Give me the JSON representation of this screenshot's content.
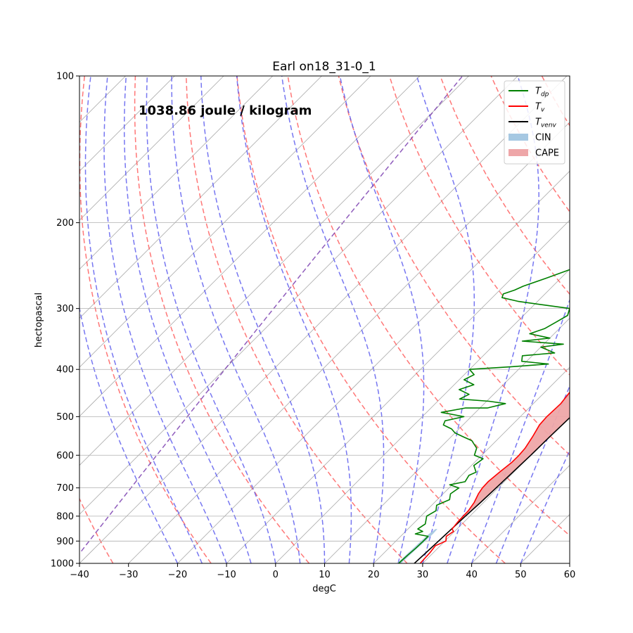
{
  "chart_data": {
    "type": "line",
    "title": "Earl on18_31-0_1",
    "annotation": "1038.86 joule / kilogram",
    "xlabel": "degC",
    "ylabel": "hectopascal",
    "xlim": [
      -40,
      60
    ],
    "ylim": [
      1000,
      100
    ],
    "y_scale": "log",
    "grid": true,
    "x_ticks": [
      -40,
      -30,
      -20,
      -10,
      0,
      10,
      20,
      30,
      40,
      50,
      60
    ],
    "y_ticks": [
      100,
      200,
      300,
      400,
      500,
      600,
      700,
      800,
      900,
      1000
    ],
    "legend": {
      "placement": "top-right",
      "entries": [
        {
          "key": "tdp",
          "base": "T",
          "sub": "dp",
          "color": "#008000",
          "kind": "line"
        },
        {
          "key": "tv",
          "base": "T",
          "sub": "v",
          "color": "#ff0000",
          "kind": "line"
        },
        {
          "key": "tvenv",
          "base": "T",
          "sub": "venv",
          "color": "#000000",
          "kind": "line"
        },
        {
          "key": "cin",
          "label": "CIN",
          "color": "#a6c8e2",
          "kind": "patch"
        },
        {
          "key": "cape",
          "label": "CAPE",
          "color": "#eea6a8",
          "kind": "patch"
        }
      ]
    },
    "colors": {
      "dry_adiabat": "#ff5555",
      "moist_adiabat": "#5555ee",
      "isotherm": "#a9a9a9",
      "mixing_ratio": "#7b3fb0"
    },
    "series": [
      {
        "key": "tvenv",
        "points": [
          [
            28.3,
            1000
          ],
          [
            28.5,
            950
          ],
          [
            28.7,
            900
          ],
          [
            28.9,
            850
          ],
          [
            29.1,
            800
          ],
          [
            29.4,
            750
          ],
          [
            29.6,
            700
          ],
          [
            29.8,
            650
          ],
          [
            30.0,
            600
          ],
          [
            30.1,
            550
          ],
          [
            30.3,
            500
          ],
          [
            30.3,
            450
          ],
          [
            30.1,
            400
          ],
          [
            29.5,
            350
          ],
          [
            28.3,
            300
          ],
          [
            26.5,
            260
          ],
          [
            24.0,
            230
          ],
          [
            22.0,
            220
          ]
        ]
      },
      {
        "key": "tv",
        "points": [
          [
            29.5,
            1000
          ],
          [
            29.3,
            950
          ],
          [
            29.0,
            920
          ],
          [
            30.2,
            900
          ],
          [
            29.3,
            880
          ],
          [
            29.8,
            860
          ],
          [
            29.0,
            850
          ],
          [
            28.7,
            820
          ],
          [
            28.6,
            780
          ],
          [
            28.1,
            750
          ],
          [
            27.2,
            720
          ],
          [
            26.8,
            700
          ],
          [
            26.7,
            680
          ],
          [
            27.1,
            650
          ],
          [
            27.6,
            620
          ],
          [
            27.6,
            600
          ],
          [
            27.4,
            580
          ],
          [
            26.6,
            550
          ],
          [
            25.6,
            520
          ],
          [
            25.4,
            500
          ],
          [
            25.6,
            470
          ],
          [
            25.0,
            440
          ],
          [
            24.6,
            420
          ],
          [
            24.8,
            400
          ],
          [
            24.3,
            380
          ],
          [
            25.0,
            360
          ],
          [
            24.3,
            340
          ],
          [
            23.6,
            320
          ],
          [
            23.4,
            300
          ],
          [
            22.9,
            280
          ],
          [
            22.0,
            260
          ],
          [
            21.0,
            240
          ],
          [
            20.8,
            220
          ]
        ]
      },
      {
        "key": "tdp",
        "points": [
          [
            25.1,
            1000
          ],
          [
            25.2,
            980
          ],
          [
            25.3,
            960
          ],
          [
            25.5,
            930
          ],
          [
            25.6,
            900
          ],
          [
            25.6,
            880
          ],
          [
            22.5,
            870
          ],
          [
            23.5,
            860
          ],
          [
            22.0,
            850
          ],
          [
            22.5,
            830
          ],
          [
            21.2,
            800
          ],
          [
            22.0,
            780
          ],
          [
            21.0,
            760
          ],
          [
            22.5,
            740
          ],
          [
            21.5,
            720
          ],
          [
            22.0,
            700
          ],
          [
            19.5,
            690
          ],
          [
            22.0,
            680
          ],
          [
            21.5,
            660
          ],
          [
            22.3,
            650
          ],
          [
            20.5,
            630
          ],
          [
            21.0,
            610
          ],
          [
            18.5,
            600
          ],
          [
            17.5,
            580
          ],
          [
            15.0,
            560
          ],
          [
            12.5,
            550
          ],
          [
            10.0,
            540
          ],
          [
            8.5,
            530
          ],
          [
            6.0,
            520
          ],
          [
            5.5,
            510
          ],
          [
            8.5,
            500
          ],
          [
            3.0,
            490
          ],
          [
            7.0,
            480
          ],
          [
            11.5,
            480
          ],
          [
            14.3,
            470
          ],
          [
            10.5,
            465
          ],
          [
            4.0,
            460
          ],
          [
            5.0,
            450
          ],
          [
            2.0,
            440
          ],
          [
            4.0,
            430
          ],
          [
            1.0,
            420
          ],
          [
            2.0,
            410
          ],
          [
            0.0,
            400
          ],
          [
            8.0,
            395
          ],
          [
            15.0,
            390
          ],
          [
            9.0,
            385
          ],
          [
            8.0,
            375
          ],
          [
            14.0,
            370
          ],
          [
            10.0,
            360
          ],
          [
            14.0,
            355
          ],
          [
            5.0,
            350
          ],
          [
            10.0,
            345
          ],
          [
            5.0,
            338
          ],
          [
            7.0,
            330
          ],
          [
            8.0,
            320
          ],
          [
            9.0,
            310
          ],
          [
            8.0,
            300
          ],
          [
            2.0,
            295
          ],
          [
            -4.0,
            290
          ],
          [
            -8.0,
            285
          ],
          [
            -8.5,
            280
          ],
          [
            -7.0,
            275
          ],
          [
            -6.0,
            270
          ],
          [
            -3.0,
            260
          ],
          [
            0.0,
            250
          ],
          [
            3.0,
            240
          ],
          [
            4.5,
            230
          ],
          [
            5.0,
            222
          ]
        ]
      }
    ],
    "cin_region": {
      "upper": [
        [
          25.6,
          1000
        ],
        [
          25.7,
          960
        ],
        [
          25.8,
          930
        ],
        [
          26.0,
          900
        ],
        [
          26.1,
          870
        ],
        [
          26.0,
          850
        ]
      ],
      "lower": [
        [
          24.8,
          1000
        ],
        [
          24.9,
          960
        ],
        [
          25.0,
          930
        ],
        [
          25.1,
          900
        ],
        [
          25.3,
          870
        ],
        [
          25.6,
          850
        ]
      ]
    }
  }
}
